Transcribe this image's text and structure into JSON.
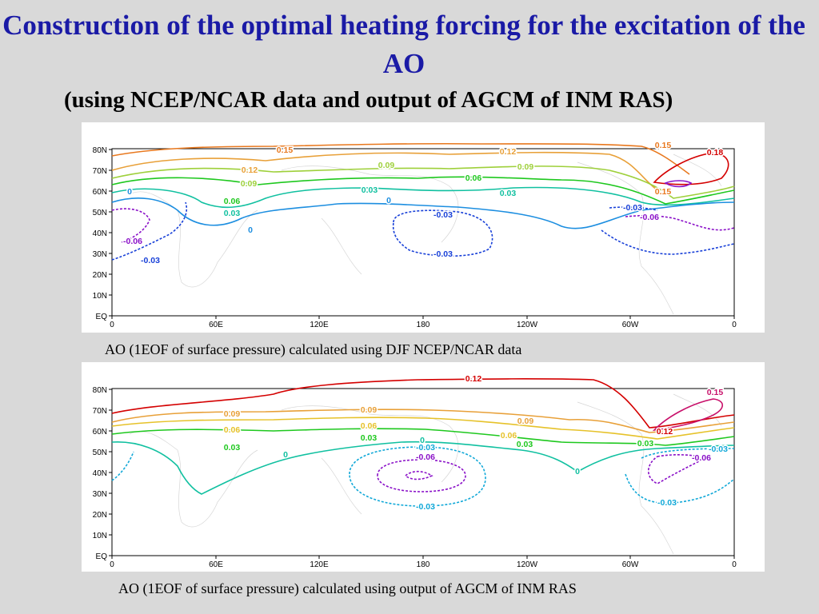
{
  "title": "Construction of the optimal heating forcing for the excitation of the AO",
  "subtitle": "(using NCEP/NCAR data and output of AGCM of INM RAS)",
  "panels": [
    {
      "caption": "AO (1EOF of surface pressure) calculated using DJF NCEP/NCAR data",
      "x_ticks": [
        "0",
        "60E",
        "120E",
        "180",
        "120W",
        "60W",
        "0"
      ],
      "y_ticks": [
        "80N",
        "70N",
        "60N",
        "50N",
        "40N",
        "30N",
        "20N",
        "10N",
        "EQ"
      ],
      "contour_labels": [
        "0.15",
        "0.12",
        "0.15",
        "0.18",
        "0.12",
        "0.09",
        "0.09",
        "0.09",
        "0.06",
        "0.06",
        "0.03",
        "0.03",
        "0.03",
        "0",
        "0",
        "0",
        "-0.03",
        "-0.03",
        "-0.03",
        "-0.06",
        "-0.03",
        "-0.06",
        "0.15"
      ]
    },
    {
      "caption": "AO (1EOF of surface pressure) calculated using output of AGCM of INM RAS",
      "x_ticks": [
        "0",
        "60E",
        "120E",
        "180",
        "120W",
        "60W",
        "0"
      ],
      "y_ticks": [
        "80N",
        "70N",
        "60N",
        "50N",
        "40N",
        "30N",
        "20N",
        "10N",
        "EQ"
      ],
      "contour_labels": [
        "0.12",
        "0.15",
        "0.09",
        "0.09",
        "0.09",
        "0.06",
        "0.06",
        "0.06",
        "0.03",
        "0.03",
        "0.03",
        "0.03",
        "0",
        "0",
        "0",
        "-0.03",
        "-0.06",
        "-0.03",
        "-0.03",
        "-0.06",
        "0.12",
        "-0.03"
      ]
    }
  ],
  "colors": {
    "c018": "#d40000",
    "c015": "#e8781e",
    "c012": "#e8a038",
    "c009": "#9ed03a",
    "c006": "#1ec81e",
    "c003": "#10c0a0",
    "c000": "#1c8ee0",
    "cm003": "#1840d8",
    "cm006": "#8a10c8",
    "title": "#1a1aa6"
  }
}
